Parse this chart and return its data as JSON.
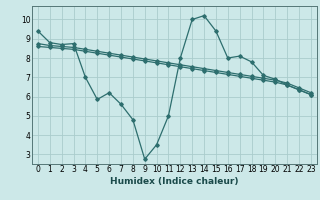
{
  "xlabel": "Humidex (Indice chaleur)",
  "background_color": "#cce8e8",
  "grid_color": "#aacccc",
  "line_color": "#2d6e6e",
  "x_min": -0.5,
  "x_max": 23.5,
  "y_min": 2.5,
  "y_max": 10.7,
  "line1_x": [
    0,
    1,
    2,
    3,
    4,
    5,
    6,
    7,
    8,
    9,
    10,
    11,
    12,
    13,
    14,
    15,
    16,
    17,
    18,
    19,
    20,
    21,
    22,
    23
  ],
  "line1_y": [
    9.4,
    8.8,
    8.7,
    8.75,
    7.0,
    5.85,
    6.2,
    5.6,
    4.8,
    2.75,
    3.5,
    5.0,
    8.0,
    10.0,
    10.2,
    9.4,
    8.0,
    8.1,
    7.8,
    7.1,
    6.9,
    6.6,
    6.35,
    6.1
  ],
  "line2_x": [
    0,
    1,
    2,
    3,
    4,
    5,
    6,
    7,
    8,
    9,
    10,
    11,
    12,
    13,
    14,
    15,
    16,
    17,
    18,
    19,
    20,
    21,
    22,
    23
  ],
  "line2_y": [
    8.75,
    8.65,
    8.6,
    8.55,
    8.45,
    8.35,
    8.25,
    8.15,
    8.05,
    7.95,
    7.85,
    7.75,
    7.65,
    7.55,
    7.45,
    7.35,
    7.25,
    7.15,
    7.05,
    6.95,
    6.85,
    6.7,
    6.45,
    6.2
  ],
  "line3_x": [
    0,
    1,
    2,
    3,
    4,
    5,
    6,
    7,
    8,
    9,
    10,
    11,
    12,
    13,
    14,
    15,
    16,
    17,
    18,
    19,
    20,
    21,
    22,
    23
  ],
  "line3_y": [
    8.6,
    8.55,
    8.5,
    8.45,
    8.35,
    8.25,
    8.15,
    8.05,
    7.95,
    7.85,
    7.75,
    7.65,
    7.55,
    7.45,
    7.35,
    7.25,
    7.15,
    7.05,
    6.95,
    6.85,
    6.75,
    6.6,
    6.35,
    6.1
  ],
  "yticks": [
    3,
    4,
    5,
    6,
    7,
    8,
    9,
    10
  ],
  "xticks": [
    0,
    1,
    2,
    3,
    4,
    5,
    6,
    7,
    8,
    9,
    10,
    11,
    12,
    13,
    14,
    15,
    16,
    17,
    18,
    19,
    20,
    21,
    22,
    23
  ],
  "marker": "D",
  "markersize": 1.8,
  "linewidth": 0.9,
  "tick_fontsize": 5.5,
  "xlabel_fontsize": 6.5
}
